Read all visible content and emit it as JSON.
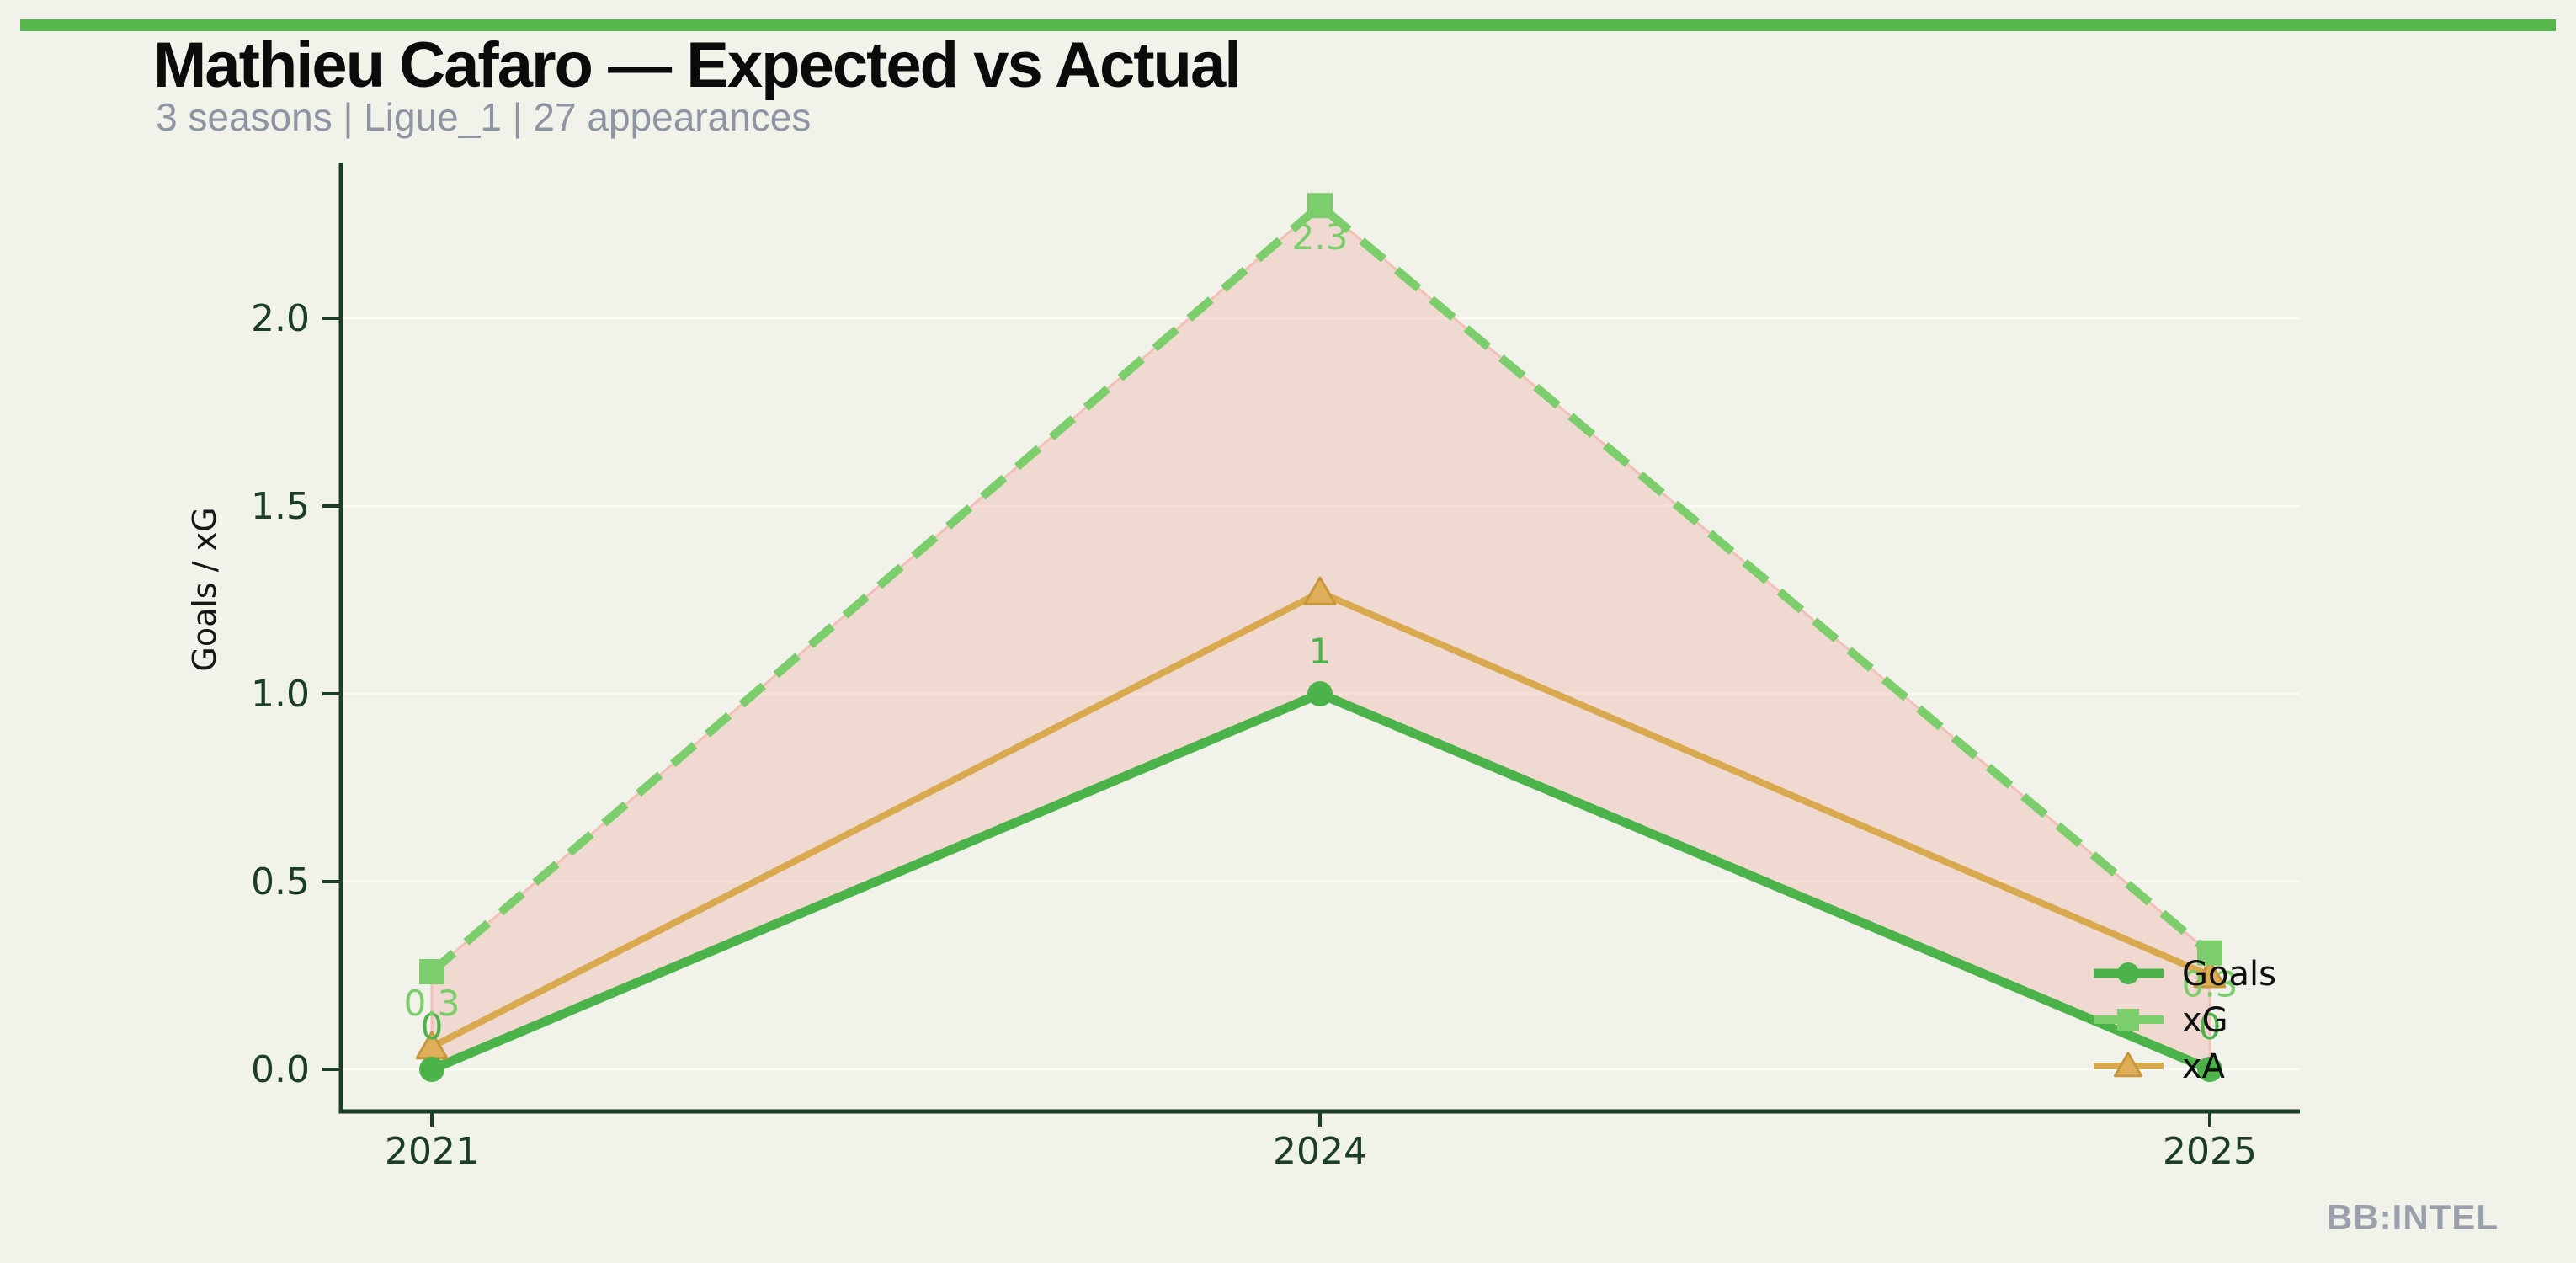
{
  "header": {
    "title": "Mathieu Cafaro — Expected vs Actual",
    "subtitle": "3 seasons | Ligue_1 | 27 appearances"
  },
  "footer": {
    "watermark": "BB:INTEL"
  },
  "colors": {
    "background": "#f1f2ea",
    "accent_bar": "#56b84c",
    "axis": "#1d3e26",
    "tick_label": "#1d3e26",
    "goals": "#4bb349",
    "xg": "#7bce6b",
    "xa": "#d9a94f",
    "xa_marker_fill": "#dfae58",
    "xa_marker_edge": "#c8963b",
    "band_fill": "rgba(231,76,60,0.15)",
    "band_edge": "#f2c0b7",
    "gridline": "#fafbf3",
    "subtitle_text": "#8d94a2",
    "watermark_text": "#9aa0ab",
    "legend_text": "#101010",
    "ylabel_text": "#161616"
  },
  "chart_data": {
    "type": "line",
    "title": "Mathieu Cafaro — Expected vs Actual",
    "subtitle": "3 seasons | Ligue_1 | 27 appearances",
    "categories": [
      "2021",
      "2024",
      "2025"
    ],
    "series": [
      {
        "name": "Goals",
        "values": [
          0,
          1,
          0
        ],
        "labels": [
          "0",
          "1",
          "0"
        ],
        "color": "#4bb349",
        "marker": "circle",
        "line": "solid",
        "width": 11,
        "label_side": "above"
      },
      {
        "name": "xG",
        "values": [
          0.26,
          2.3,
          0.31
        ],
        "labels": [
          "0.3",
          "2.3",
          "0.3"
        ],
        "color": "#7bce6b",
        "marker": "square",
        "line": "dashed",
        "width": 10,
        "label_side": "below"
      },
      {
        "name": "xA",
        "values": [
          0.06,
          1.27,
          0.25
        ],
        "labels": null,
        "color": "#d9a94f",
        "marker": "triangle",
        "line": "solid",
        "width": 8,
        "label_side": "none"
      }
    ],
    "band": {
      "lower": "Goals",
      "upper": "xG"
    },
    "xlabel": "",
    "ylabel": "Goals / xG",
    "yticks": [
      "0.0",
      "0.5",
      "1.0",
      "1.5",
      "2.0"
    ],
    "ylim": [
      0,
      2.41
    ],
    "grid": "horizontal-faint",
    "legend_position": "inside-right",
    "legend_entries": [
      "Goals",
      "xG",
      "xA"
    ]
  }
}
